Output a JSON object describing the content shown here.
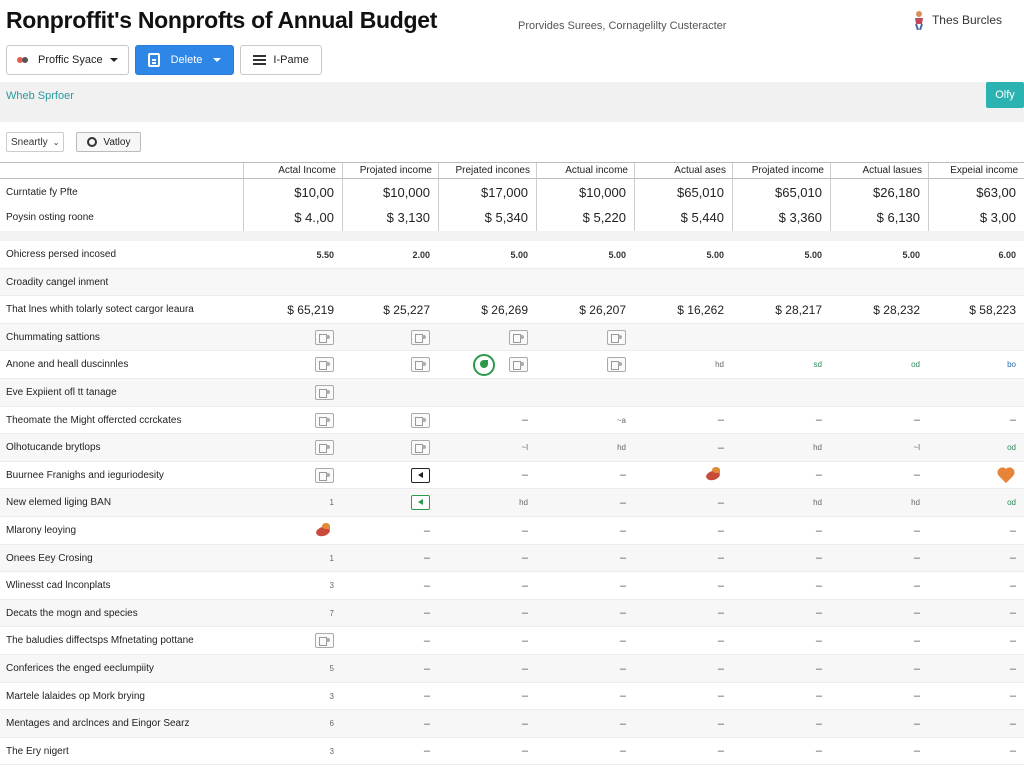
{
  "header": {
    "title": "Ronproffit's Nonprofts of  Annual Budget",
    "subtitle": "Prorvides Surees, Cornagelilty Custeracter",
    "user_name": "Thes Burcles"
  },
  "toolbar": {
    "profile_label": "Proffic Syace",
    "delete_label": "Delete",
    "frame_label": "I-Pame"
  },
  "band": {
    "label": "Wheb Sprfoer",
    "button_label": "Olfy"
  },
  "filters": {
    "select_label": "Sneartly",
    "button_label": "Vatloy"
  },
  "table": {
    "columns": [
      "Actal Income",
      "Projated income",
      "Prejated incones",
      "Actual income",
      "Actual ases",
      "Projated income",
      "Actual lasues",
      "Expeial income"
    ],
    "summary_rows": [
      {
        "label": "Curntatie fy Pfte",
        "values": [
          "$10,00",
          "$10,000",
          "$17,000",
          "$10,000",
          "$65,010",
          "$65,010",
          "$26,180",
          "$63,00"
        ]
      },
      {
        "label": "Poysin osting roone",
        "values": [
          "$ 4.,00",
          "$ 3,130",
          "$ 5,340",
          "$ 5,220",
          "$ 5,440",
          "$ 3,360",
          "$ 6,130",
          "$ 3,00"
        ]
      }
    ],
    "rows": [
      {
        "label": "Ohicress persed incosed",
        "cells": [
          "5.50",
          "2.00",
          "5.00",
          "5.00",
          "5.00",
          "5.00",
          "5.00",
          "6.00"
        ]
      },
      {
        "label": "Croadity cangel inment",
        "cells": [
          "",
          "",
          "",
          "",
          "",
          "",
          "",
          ""
        ]
      },
      {
        "label": "That lnes whith tolarly sotect cargor leaura",
        "cells": [
          "$ 65,219",
          "$ 25,227",
          "$ 26,269",
          "$ 26,207",
          "$ 16,262",
          "$ 28,217",
          "$ 28,232",
          "$ 58,223"
        ]
      },
      {
        "label": "Chummating sattions",
        "cells": [
          "icon:image",
          "icon:image",
          "icon:image",
          "icon:image",
          "",
          "",
          "",
          ""
        ]
      },
      {
        "label": "Anone and heall duscinnles",
        "cells": [
          "icon:image",
          "icon:image",
          "icon:recycle+image",
          "icon:image",
          "hd",
          "sd",
          "od",
          "bo"
        ]
      },
      {
        "label": "Eve Expiient ofl tt tanage",
        "cells": [
          "icon:image",
          "",
          "",
          "",
          "",
          "",
          "",
          ""
        ]
      },
      {
        "label": "Theomate the Might offercted ccrckates",
        "cells": [
          "icon:image",
          "icon:image",
          "–",
          "~a",
          "–",
          "–",
          "–",
          "–"
        ]
      },
      {
        "label": "Olhotucande brytlops",
        "cells": [
          "icon:image",
          "icon:image",
          "~l",
          "hd",
          "–",
          "hd",
          "~l",
          "od"
        ]
      },
      {
        "label": "Buurnee Franighs and ieguriodesity",
        "cells": [
          "icon:image",
          "icon:arrow",
          "–",
          "–",
          "icon:bird",
          "–",
          "–",
          "icon:heart"
        ]
      },
      {
        "label": "New elemed liging BAN",
        "cells": [
          "1",
          "icon:arrow-green",
          "hd",
          "–",
          "–",
          "hd",
          "hd",
          "od"
        ]
      },
      {
        "label": "Mlarony leoying",
        "cells": [
          "icon:bird",
          "–",
          "–",
          "–",
          "–",
          "–",
          "–",
          "–"
        ]
      },
      {
        "label": "Onees Eey Crosing",
        "cells": [
          "1",
          "–",
          "–",
          "–",
          "–",
          "–",
          "–",
          "–"
        ]
      },
      {
        "label": "Wlinesst cad lnconplats",
        "cells": [
          "3",
          "–",
          "–",
          "–",
          "–",
          "–",
          "–",
          "–"
        ]
      },
      {
        "label": "Decats the mogn and species",
        "cells": [
          "7",
          "–",
          "–",
          "–",
          "–",
          "–",
          "–",
          "–"
        ]
      },
      {
        "label": "The baludies diffectsps Mfnetating pottane",
        "cells": [
          "icon:image",
          "–",
          "–",
          "–",
          "–",
          "–",
          "–",
          "–"
        ]
      },
      {
        "label": "Conferices the enged eeclumpiity",
        "cells": [
          "5",
          "–",
          "–",
          "–",
          "–",
          "–",
          "–",
          "–"
        ]
      },
      {
        "label": "Martele lalaides op Mork brying",
        "cells": [
          "3",
          "–",
          "–",
          "–",
          "–",
          "–",
          "–",
          "–"
        ]
      },
      {
        "label": "Mentages and arclnces and Eingor Searz",
        "cells": [
          "6",
          "–",
          "–",
          "–",
          "–",
          "–",
          "–",
          "–"
        ]
      },
      {
        "label": "The Ery nigert",
        "cells": [
          "3",
          "–",
          "–",
          "–",
          "–",
          "–",
          "–",
          "–"
        ]
      }
    ]
  },
  "colors": {
    "accent": "#2e86e6",
    "teal": "#2bb3b1"
  }
}
